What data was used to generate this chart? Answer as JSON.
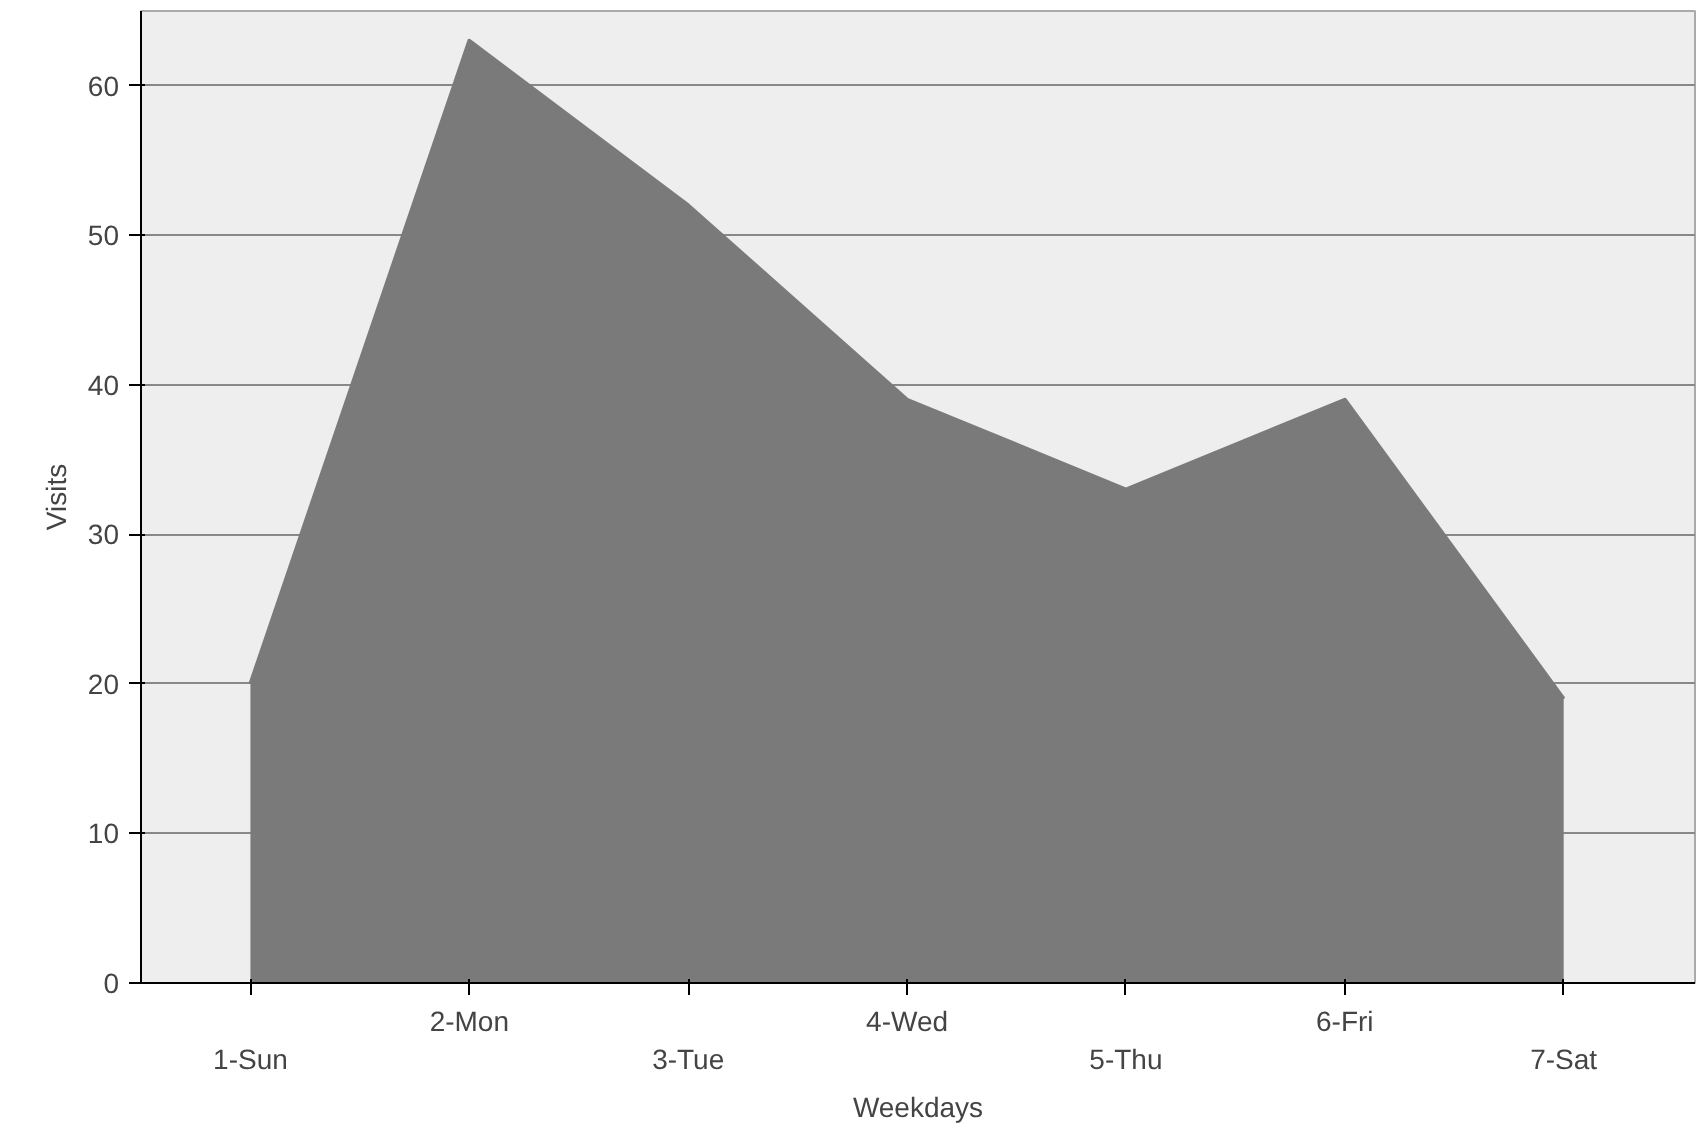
{
  "chart_data": {
    "type": "area",
    "xlabel": "Weekdays",
    "ylabel": "Visits",
    "categories": [
      "1-Sun",
      "2-Mon",
      "3-Tue",
      "4-Wed",
      "5-Thu",
      "6-Fri",
      "7-Sat"
    ],
    "series": [
      {
        "color": "#7a7a7a",
        "values": [
          20,
          63,
          52,
          39,
          33,
          39,
          19
        ]
      }
    ],
    "ylim": [
      0,
      65
    ],
    "yticks": [
      0,
      10,
      20,
      30,
      40,
      50,
      60
    ],
    "grid": "y"
  }
}
